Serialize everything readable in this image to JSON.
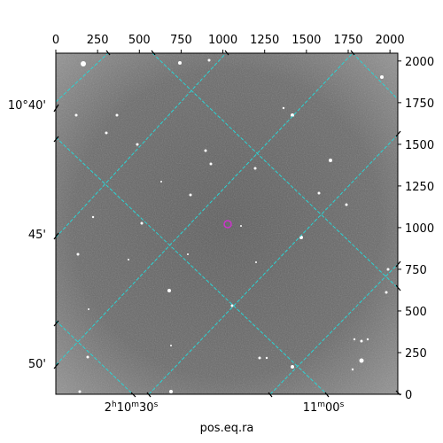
{
  "figure": {
    "xlabel": "pos.eq.ra",
    "pixel_x_ticks": [
      "0",
      "250",
      "500",
      "750",
      "1000",
      "1250",
      "1500",
      "1750",
      "2000"
    ],
    "pixel_y_ticks": [
      "0",
      "250",
      "500",
      "750",
      "1000",
      "1250",
      "1500",
      "1750",
      "2000"
    ],
    "dec_ticks": [
      "10°40'",
      "45'",
      "50'"
    ],
    "ra_ticks": [
      {
        "h": "2",
        "hs": "h",
        "m": "10",
        "ms": "m",
        "s": "30",
        "ss": "s"
      },
      {
        "h": "",
        "hs": "",
        "m": "11",
        "ms": "m",
        "s": "00",
        "ss": "s"
      }
    ],
    "grid_color": "#2ad4d4",
    "marker_color": "#cc33cc"
  }
}
